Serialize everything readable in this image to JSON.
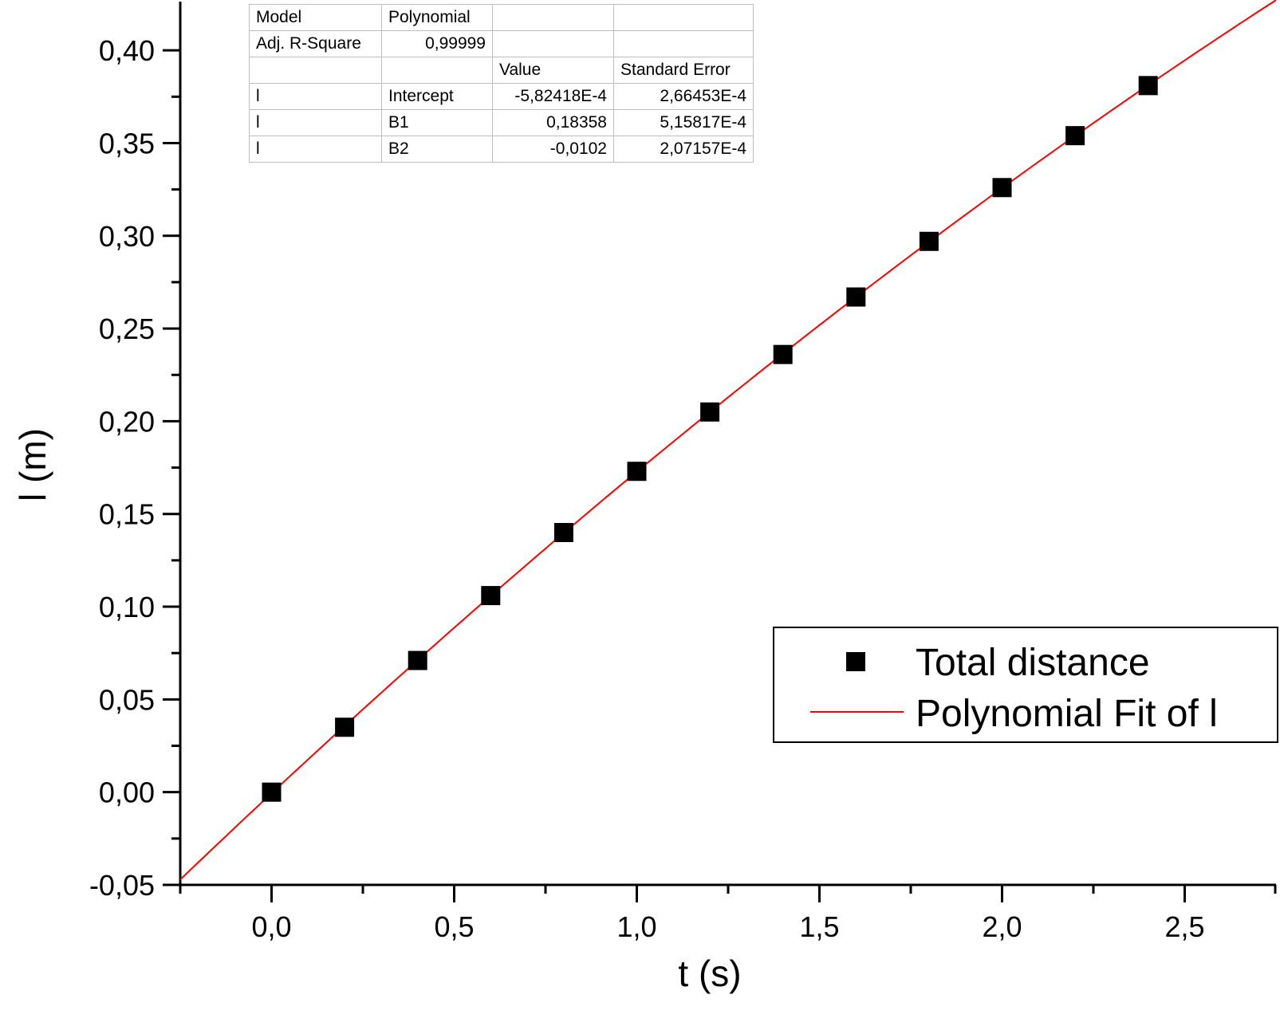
{
  "stats_table": {
    "rows": [
      [
        "Model",
        "Polynomial",
        "",
        ""
      ],
      [
        "Adj. R-Square",
        "0,99999",
        "",
        ""
      ],
      [
        "",
        "",
        "Value",
        "Standard Error"
      ],
      [
        "l",
        "Intercept",
        "-5,82418E-4",
        "2,66453E-4"
      ],
      [
        "l",
        "B1",
        "0,18358",
        "5,15817E-4"
      ],
      [
        "l",
        "B2",
        "-0,0102",
        "2,07157E-4"
      ]
    ]
  },
  "chart_data": {
    "type": "scatter",
    "xlabel": "t (s)",
    "ylabel": "l (m)",
    "xlim": [
      -0.25,
      2.75
    ],
    "ylim": [
      -0.05,
      0.425
    ],
    "x_ticks": [
      0.0,
      0.5,
      1.0,
      1.5,
      2.0,
      2.5
    ],
    "x_tick_labels": [
      "0,0",
      "0,5",
      "1,0",
      "1,5",
      "2,0",
      "2,5"
    ],
    "y_ticks": [
      -0.05,
      0.0,
      0.05,
      0.1,
      0.15,
      0.2,
      0.25,
      0.3,
      0.35,
      0.4
    ],
    "y_tick_labels": [
      "-0,05",
      "0,00",
      "0,05",
      "0,10",
      "0,15",
      "0,20",
      "0,25",
      "0,30",
      "0,35",
      "0,40"
    ],
    "grid": false,
    "legend_position": "lower-right",
    "series": [
      {
        "name": "Total distance",
        "kind": "scatter",
        "marker": "square",
        "color": "#000000",
        "x": [
          0.0,
          0.2,
          0.4,
          0.6,
          0.8,
          1.0,
          1.2,
          1.4,
          1.6,
          1.8,
          2.0,
          2.2,
          2.4
        ],
        "y": [
          0.0,
          0.035,
          0.071,
          0.106,
          0.14,
          0.173,
          0.205,
          0.236,
          0.267,
          0.297,
          0.326,
          0.354,
          0.381
        ]
      },
      {
        "name": "Polynomial Fit of l",
        "kind": "line",
        "color": "#ff0000",
        "coefficients": {
          "intercept": -0.000582418,
          "b1": 0.18358,
          "b2": -0.0102
        },
        "x_range": [
          -0.25,
          2.75
        ]
      }
    ]
  }
}
